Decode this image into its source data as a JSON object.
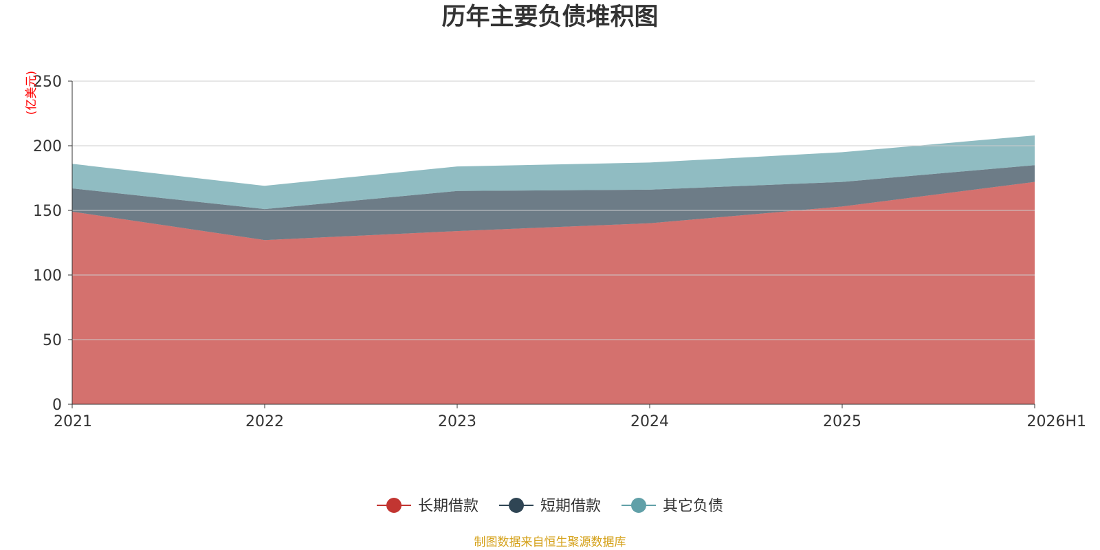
{
  "chart_data": {
    "type": "area",
    "title": "历年主要负债堆积图",
    "ylabel": "(亿美元)",
    "xlabel": "",
    "categories": [
      "2021",
      "2022",
      "2023",
      "2024",
      "2025",
      "2026H1"
    ],
    "ylim": [
      0,
      250
    ],
    "yticks": [
      0,
      50,
      100,
      150,
      200,
      250
    ],
    "stacked": true,
    "grid": true,
    "legend_position": "bottom",
    "series": [
      {
        "name": "长期借款",
        "color": "#c23531",
        "values": [
          149,
          127,
          134,
          140,
          153,
          172
        ]
      },
      {
        "name": "短期借款",
        "color": "#2f4554",
        "values": [
          18,
          24,
          31,
          26,
          19,
          13
        ]
      },
      {
        "name": "其它负债",
        "color": "#61a0a8",
        "values": [
          19,
          18,
          19,
          21,
          23,
          23
        ]
      }
    ]
  },
  "source_note": "制图数据来自恒生聚源数据库",
  "colors": {
    "title": "#333333",
    "ylabel": "#ff0000",
    "source_note": "#d4a017",
    "axis": "#333333",
    "grid": "#cccccc"
  }
}
